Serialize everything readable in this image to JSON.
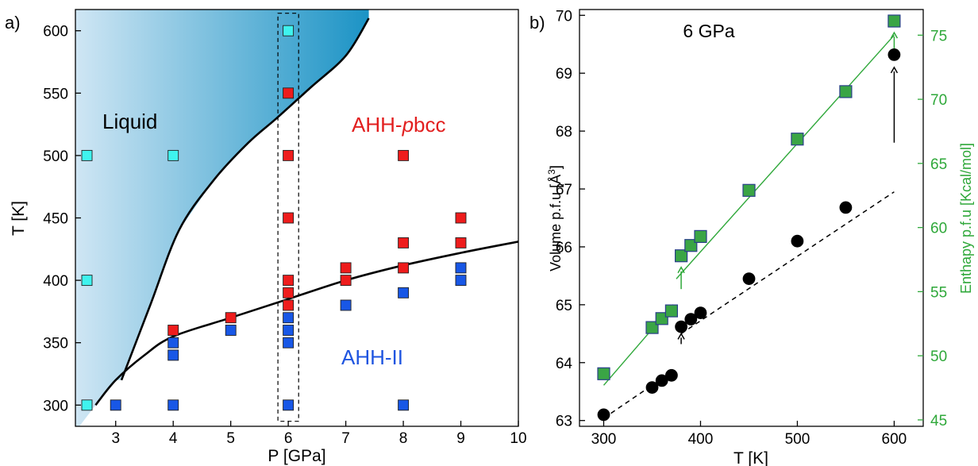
{
  "colors": {
    "liquid_light": "#cfe6f4",
    "liquid_dark": "#1b93c5",
    "red_marker": "#ee1c1c",
    "blue_marker": "#1857e6",
    "cyan_marker": "#3ff3ee",
    "green": "#2fa83a",
    "green_marker": "#3aa545",
    "black": "#000000",
    "blue_label": "#1f55e0",
    "red_label": "#e21f1f"
  },
  "chart_data": [
    {
      "panel_label": "a)",
      "type": "scatter",
      "xlabel": "P [GPa]",
      "ylabel": "T [K]",
      "xlim": [
        2.3,
        10
      ],
      "ylim": [
        283,
        617
      ],
      "xticks": [
        "3",
        "4",
        "5",
        "6",
        "7",
        "8",
        "9",
        "10"
      ],
      "yticks": [
        "300",
        "350",
        "400",
        "450",
        "500",
        "550",
        "600"
      ],
      "region_labels": {
        "liquid": "Liquid",
        "pbcc_prefix": "AHH-",
        "pbcc_italic": "p",
        "pbcc_suffix": "bcc",
        "ahh2": "AHH-II"
      },
      "series": [
        {
          "name": "Liquid",
          "marker": "square",
          "color": "#3ff3ee",
          "points": [
            [
              2.5,
              500
            ],
            [
              2.5,
              400
            ],
            [
              2.5,
              300
            ],
            [
              4,
              500
            ],
            [
              6,
              600
            ]
          ]
        },
        {
          "name": "AHH-pbcc",
          "marker": "square",
          "color": "#ee1c1c",
          "points": [
            [
              4,
              360
            ],
            [
              5,
              370
            ],
            [
              6,
              550
            ],
            [
              6,
              500
            ],
            [
              6,
              450
            ],
            [
              6,
              400
            ],
            [
              6,
              390
            ],
            [
              6,
              380
            ],
            [
              7,
              410
            ],
            [
              7,
              400
            ],
            [
              8,
              500
            ],
            [
              8,
              430
            ],
            [
              8,
              410
            ],
            [
              9,
              450
            ],
            [
              9,
              430
            ]
          ]
        },
        {
          "name": "AHH-II",
          "marker": "square",
          "color": "#1857e6",
          "points": [
            [
              3,
              300
            ],
            [
              4,
              350
            ],
            [
              4,
              340
            ],
            [
              4,
              300
            ],
            [
              5,
              360
            ],
            [
              6,
              370
            ],
            [
              6,
              360
            ],
            [
              6,
              350
            ],
            [
              6,
              300
            ],
            [
              7,
              380
            ],
            [
              8,
              390
            ],
            [
              8,
              300
            ],
            [
              9,
              410
            ],
            [
              9,
              400
            ]
          ]
        }
      ],
      "boundaries": [
        {
          "name": "melting line",
          "points": [
            [
              3.1,
              320
            ],
            [
              3.6,
              380
            ],
            [
              4.1,
              440
            ],
            [
              4.7,
              480
            ],
            [
              5.3,
              510
            ],
            [
              5.8,
              530
            ],
            [
              6.4,
              555
            ],
            [
              7.0,
              580
            ],
            [
              7.4,
              610
            ]
          ]
        },
        {
          "name": "pbcc/II transition",
          "points": [
            [
              2.65,
              300
            ],
            [
              3.0,
              320
            ],
            [
              3.5,
              340
            ],
            [
              4.0,
              355
            ],
            [
              5.0,
              370
            ],
            [
              6.0,
              385
            ],
            [
              7.0,
              400
            ],
            [
              8.0,
              412
            ],
            [
              9.0,
              422
            ],
            [
              10.0,
              431
            ]
          ]
        }
      ],
      "highlight_box": {
        "x": [
          5.82,
          6.18
        ],
        "y": [
          287,
          614
        ]
      },
      "legend": "none"
    },
    {
      "panel_label": "b)",
      "type": "scatter",
      "title": "6 GPa",
      "xlabel": "T [K]",
      "ylabel": "Volume p.f.u [Å",
      "ylabel_sup": "3",
      "ylabel_end": "]",
      "y2label": "Enthapy p.f.u [Kcal/mol]",
      "xlim": [
        275,
        630
      ],
      "ylim": [
        62.9,
        70.1
      ],
      "y2lim": [
        44.5,
        77
      ],
      "xticks": [
        "300",
        "400",
        "500",
        "600"
      ],
      "yticks": [
        "63",
        "64",
        "65",
        "66",
        "67",
        "68",
        "69",
        "70"
      ],
      "y2ticks": [
        "45",
        "50",
        "55",
        "60",
        "65",
        "70",
        "75"
      ],
      "series": [
        {
          "name": "Volume",
          "axis": "left",
          "marker": "circle",
          "color": "#000000",
          "x": [
            300,
            350,
            360,
            370,
            380,
            390,
            400,
            450,
            500,
            550,
            600
          ],
          "y": [
            63.1,
            63.57,
            63.69,
            63.78,
            64.62,
            64.75,
            64.86,
            65.45,
            66.1,
            66.68,
            69.32
          ]
        },
        {
          "name": "Enthalpy",
          "axis": "right",
          "marker": "square",
          "color": "#3aa545",
          "x": [
            300,
            350,
            360,
            370,
            380,
            390,
            400,
            450,
            500,
            550,
            600
          ],
          "y": [
            48.6,
            52.2,
            52.9,
            53.5,
            57.8,
            58.6,
            59.3,
            62.9,
            66.9,
            70.6,
            76.1
          ]
        }
      ],
      "fit_lines": [
        {
          "axis": "left",
          "style": "dashed",
          "color": "#000000",
          "x": [
            300,
            372
          ],
          "y": [
            63.04,
            63.86
          ]
        },
        {
          "axis": "left",
          "style": "dashed",
          "color": "#000000",
          "x": [
            380,
            600
          ],
          "y": [
            64.5,
            66.95
          ]
        },
        {
          "axis": "right",
          "style": "solid",
          "color": "#2fa83a",
          "x": [
            300,
            372
          ],
          "y": [
            47.7,
            54.0
          ]
        },
        {
          "axis": "right",
          "style": "solid",
          "color": "#2fa83a",
          "x": [
            375,
            600
          ],
          "y": [
            56.0,
            75.0
          ]
        }
      ],
      "arrows": [
        {
          "axis": "left",
          "color": "#000000",
          "x": 380,
          "from": 64.32,
          "to": 64.5
        },
        {
          "axis": "left",
          "color": "#000000",
          "x": 600,
          "from": 67.8,
          "to": 69.1
        },
        {
          "axis": "right",
          "color": "#2fa83a",
          "x": 380,
          "from": 55.2,
          "to": 56.9
        },
        {
          "axis": "right",
          "color": "#2fa83a",
          "x": 600,
          "from": 73.3,
          "to": 75.2
        }
      ],
      "legend": "none"
    }
  ]
}
